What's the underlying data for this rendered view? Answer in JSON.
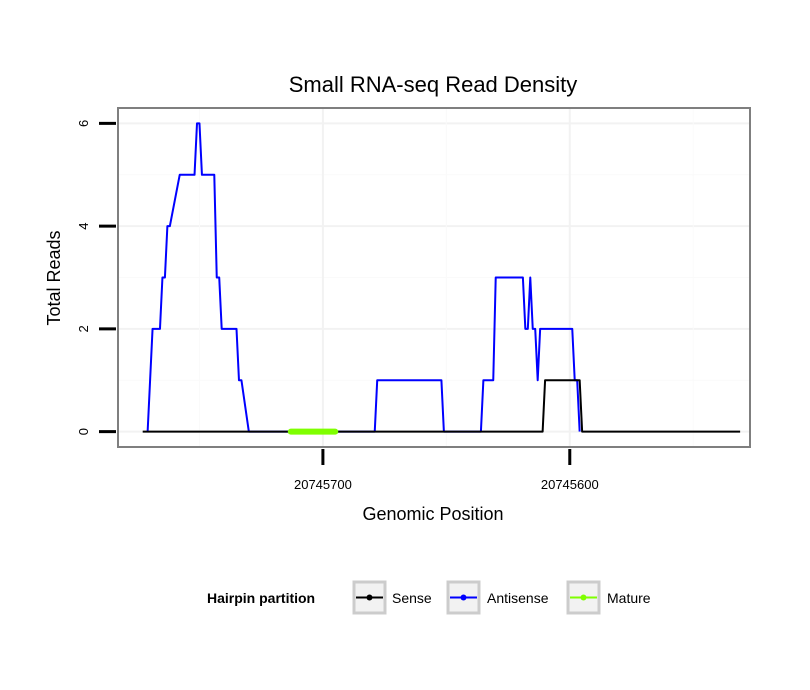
{
  "chart_data": {
    "type": "line",
    "title": "Small RNA-seq Read Density",
    "xlabel": "Genomic Position",
    "ylabel": "Total Reads",
    "xlim": [
      20745783,
      20745527
    ],
    "ylim": [
      -0.3,
      6.3
    ],
    "x_reversed": true,
    "xticks": [
      20745700,
      20745600
    ],
    "xtick_labels": [
      "20745700",
      "20745600"
    ],
    "yticks": [
      0,
      2,
      4,
      6
    ],
    "ytick_labels": [
      "0",
      "2",
      "4",
      "6"
    ],
    "grid": true,
    "legend": {
      "title": "Hairpin partition",
      "position": "bottom",
      "entries": [
        {
          "name": "Sense",
          "color": "#000000"
        },
        {
          "name": "Antisense",
          "color": "#0000ff"
        },
        {
          "name": "Mature",
          "color": "#7fff00"
        }
      ]
    },
    "series": [
      {
        "name": "Antisense",
        "color": "#0000ff",
        "x": [
          20745771,
          20745769,
          20745766,
          20745765,
          20745764,
          20745763,
          20745762,
          20745758,
          20745757,
          20745752,
          20745751,
          20745750,
          20745749,
          20745745,
          20745744,
          20745743,
          20745742,
          20745741,
          20745735,
          20745734,
          20745733,
          20745730,
          20745679,
          20745678,
          20745652,
          20745651,
          20745636,
          20745635,
          20745631,
          20745630,
          20745619,
          20745618,
          20745617,
          20745616,
          20745615,
          20745614,
          20745613,
          20745612,
          20745599,
          20745598,
          20745597,
          20745596,
          20745596
        ],
        "y": [
          0,
          2,
          2,
          3,
          3,
          4,
          4,
          5,
          5,
          5,
          6,
          6,
          5,
          5,
          5,
          3,
          3,
          2,
          2,
          1,
          1,
          0,
          0,
          1,
          1,
          0,
          0,
          1,
          1,
          3,
          3,
          2,
          2,
          3,
          2,
          2,
          1,
          2,
          2,
          1,
          1,
          0,
          0
        ]
      },
      {
        "name": "Sense",
        "color": "#000000",
        "x": [
          20745773,
          20745611,
          20745610,
          20745596,
          20745595,
          20745531
        ],
        "y": [
          0,
          0,
          1,
          1,
          0,
          0
        ]
      },
      {
        "name": "Mature",
        "color": "#7fff00",
        "x": [
          20745713,
          20745695
        ],
        "y": [
          0,
          0
        ]
      }
    ]
  }
}
